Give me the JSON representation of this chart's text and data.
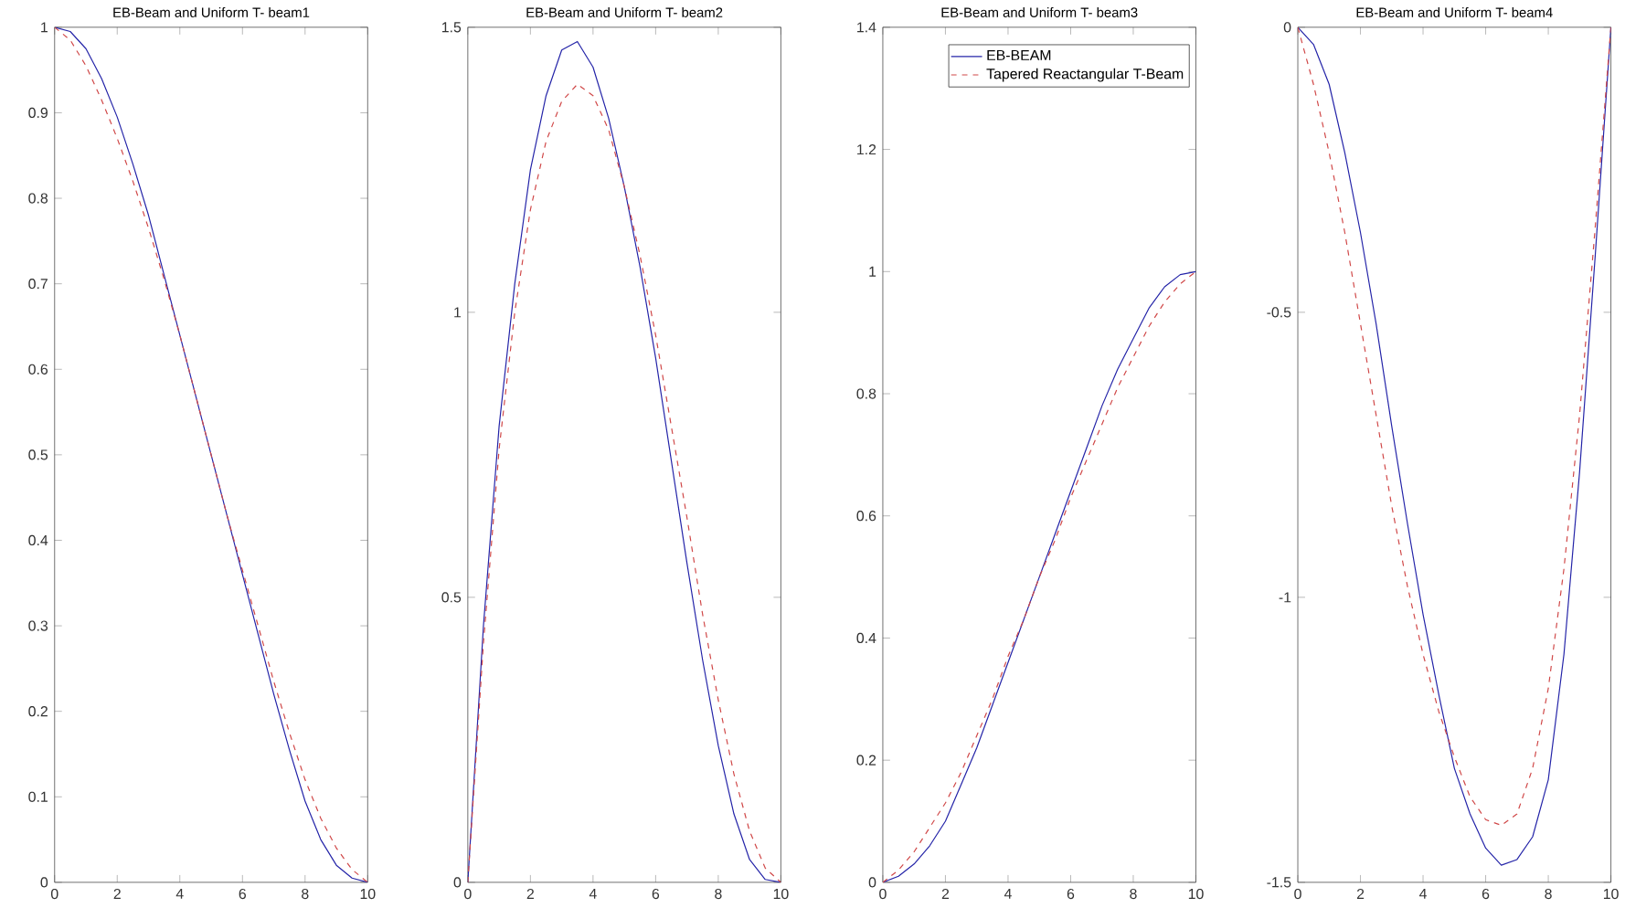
{
  "chart_data": [
    {
      "type": "line",
      "title": "EB-Beam and Uniform T- beam1",
      "x": [
        0,
        0.5,
        1,
        1.5,
        2,
        2.5,
        3,
        3.5,
        4,
        4.5,
        5,
        5.5,
        6,
        6.5,
        7,
        7.5,
        8,
        8.5,
        9,
        9.5,
        10
      ],
      "xlim": [
        0,
        10
      ],
      "xticks": [
        0,
        2,
        4,
        6,
        8,
        10
      ],
      "ylim": [
        0,
        1
      ],
      "yticks": [
        0,
        0.1,
        0.2,
        0.3,
        0.4,
        0.5,
        0.6,
        0.7,
        0.8,
        0.9,
        1
      ],
      "series": [
        {
          "color": "#2424a8",
          "line_style": "solid",
          "values": [
            1,
            0.995,
            0.975,
            0.94,
            0.895,
            0.84,
            0.78,
            0.71,
            0.64,
            0.57,
            0.5,
            0.43,
            0.36,
            0.29,
            0.22,
            0.155,
            0.095,
            0.05,
            0.02,
            0.005,
            0
          ]
        },
        {
          "color": "#d04848",
          "line_style": "dashed",
          "values": [
            1,
            0.985,
            0.955,
            0.915,
            0.87,
            0.82,
            0.765,
            0.705,
            0.64,
            0.57,
            0.5,
            0.43,
            0.365,
            0.3,
            0.235,
            0.175,
            0.12,
            0.075,
            0.04,
            0.015,
            0
          ]
        }
      ]
    },
    {
      "type": "line",
      "title": "EB-Beam and Uniform T- beam2",
      "x": [
        0,
        0.5,
        1,
        1.5,
        2,
        2.5,
        3,
        3.5,
        4,
        4.5,
        5,
        5.5,
        6,
        6.5,
        7,
        7.5,
        8,
        8.5,
        9,
        9.5,
        10
      ],
      "xlim": [
        0,
        10
      ],
      "xticks": [
        0,
        2,
        4,
        6,
        8,
        10
      ],
      "ylim": [
        0,
        1.5
      ],
      "yticks": [
        0,
        0.5,
        1,
        1.5
      ],
      "series": [
        {
          "color": "#2424a8",
          "line_style": "solid",
          "values": [
            0,
            0.45,
            0.8,
            1.05,
            1.25,
            1.38,
            1.46,
            1.475,
            1.43,
            1.34,
            1.22,
            1.08,
            0.92,
            0.74,
            0.56,
            0.39,
            0.24,
            0.12,
            0.04,
            0.005,
            0
          ]
        },
        {
          "color": "#d04848",
          "line_style": "dashed",
          "values": [
            0,
            0.42,
            0.76,
            1.0,
            1.18,
            1.3,
            1.37,
            1.4,
            1.38,
            1.32,
            1.22,
            1.1,
            0.96,
            0.8,
            0.64,
            0.47,
            0.32,
            0.19,
            0.09,
            0.025,
            0
          ]
        }
      ]
    },
    {
      "type": "line",
      "title": "EB-Beam and Uniform T- beam3",
      "x": [
        0,
        0.5,
        1,
        1.5,
        2,
        2.5,
        3,
        3.5,
        4,
        4.5,
        5,
        5.5,
        6,
        6.5,
        7,
        7.5,
        8,
        8.5,
        9,
        9.5,
        10
      ],
      "xlim": [
        0,
        10
      ],
      "xticks": [
        0,
        2,
        4,
        6,
        8,
        10
      ],
      "ylim": [
        0,
        1.4
      ],
      "yticks": [
        0,
        0.2,
        0.4,
        0.6,
        0.8,
        1,
        1.2,
        1.4
      ],
      "legend": "top right",
      "series": [
        {
          "name": "EB-BEAM",
          "color": "#2424a8",
          "line_style": "solid",
          "values": [
            0,
            0.01,
            0.03,
            0.06,
            0.1,
            0.16,
            0.22,
            0.29,
            0.36,
            0.43,
            0.5,
            0.57,
            0.64,
            0.71,
            0.78,
            0.84,
            0.89,
            0.94,
            0.975,
            0.995,
            1
          ]
        },
        {
          "name": "Tapered Reactangular T-Beam",
          "color": "#d04848",
          "line_style": "dashed",
          "values": [
            0,
            0.02,
            0.05,
            0.09,
            0.13,
            0.18,
            0.24,
            0.3,
            0.37,
            0.43,
            0.5,
            0.56,
            0.63,
            0.69,
            0.75,
            0.81,
            0.86,
            0.91,
            0.95,
            0.98,
            1
          ]
        }
      ]
    },
    {
      "type": "line",
      "title": "EB-Beam and Uniform T- beam4",
      "x": [
        0,
        0.5,
        1,
        1.5,
        2,
        2.5,
        3,
        3.5,
        4,
        4.5,
        5,
        5.5,
        6,
        6.5,
        7,
        7.5,
        8,
        8.5,
        9,
        9.5,
        10
      ],
      "xlim": [
        0,
        10
      ],
      "xticks": [
        0,
        2,
        4,
        6,
        8,
        10
      ],
      "ylim": [
        -1.5,
        0
      ],
      "yticks": [
        -1.5,
        -1,
        -0.5,
        0
      ],
      "series": [
        {
          "color": "#2424a8",
          "line_style": "solid",
          "values": [
            0,
            -0.03,
            -0.1,
            -0.22,
            -0.36,
            -0.52,
            -0.7,
            -0.87,
            -1.03,
            -1.17,
            -1.3,
            -1.38,
            -1.44,
            -1.47,
            -1.46,
            -1.42,
            -1.32,
            -1.1,
            -0.78,
            -0.4,
            0
          ]
        },
        {
          "color": "#d04848",
          "line_style": "dashed",
          "values": [
            0,
            -0.1,
            -0.22,
            -0.36,
            -0.52,
            -0.68,
            -0.84,
            -0.98,
            -1.1,
            -1.2,
            -1.28,
            -1.35,
            -1.39,
            -1.4,
            -1.38,
            -1.3,
            -1.16,
            -0.95,
            -0.68,
            -0.35,
            0
          ]
        }
      ]
    }
  ]
}
